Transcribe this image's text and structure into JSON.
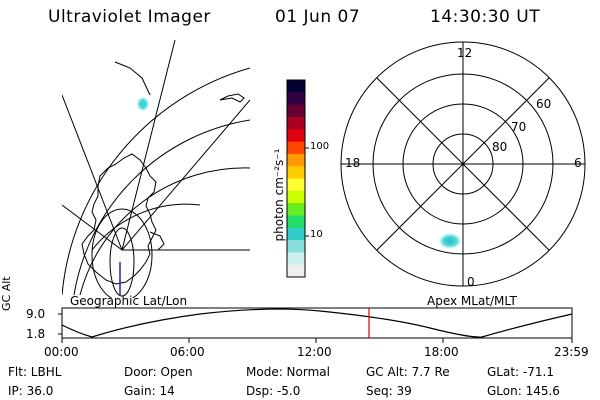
{
  "header": {
    "instrument": "Ultraviolet Imager",
    "date": "01 Jun 07",
    "time": "14:30:30 UT"
  },
  "geo_panel": {
    "caption": "Geographic Lat/Lon"
  },
  "polar_panel": {
    "caption": "Apex MLat/MLT",
    "mlt_labels": [
      "12",
      "18",
      "6",
      "0"
    ],
    "mlat_labels": [
      "60",
      "70",
      "80"
    ]
  },
  "colorbar": {
    "label": "photon cm⁻²s⁻¹",
    "tick_labels": [
      "100",
      "10"
    ],
    "scale": "log",
    "colors": [
      "#000033",
      "#330044",
      "#660033",
      "#aa0022",
      "#dd0011",
      "#ff4400",
      "#ff9900",
      "#ffcc00",
      "#ffff33",
      "#ccff00",
      "#66ee22",
      "#22dd66",
      "#33cccc",
      "#88dddd",
      "#ccefef",
      "#eeeeee"
    ]
  },
  "gc_alt_plot": {
    "ylabel": "GC Alt",
    "ytick_labels": [
      "9.0",
      "1.8"
    ],
    "xtick_labels": [
      "00:00",
      "06:00",
      "12:00",
      "18:00",
      "23:59"
    ],
    "marker_color": "#dd0000"
  },
  "status": {
    "flt": "Flt: LBHL",
    "ip": "IP: 36.0",
    "door": "Door: Open",
    "gain": "Gain: 14",
    "mode": "Mode: Normal",
    "dsp": "Dsp:    -5.0",
    "gc_alt": "GC Alt: 7.7 Re",
    "seq": "Seq: 39",
    "glat": "GLat: -71.1",
    "glon": "GLon: 145.6"
  }
}
